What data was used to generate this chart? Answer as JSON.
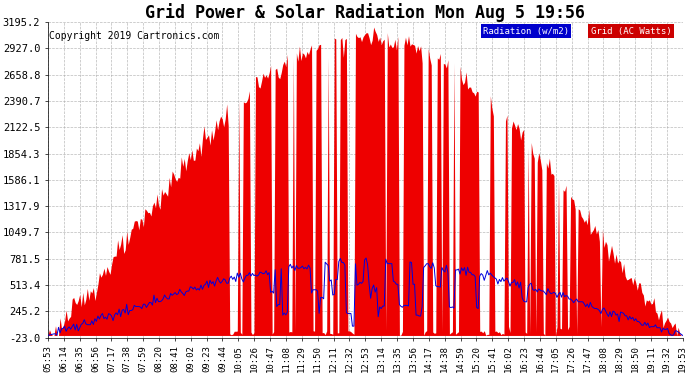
{
  "title": "Grid Power & Solar Radiation Mon Aug 5 19:56",
  "copyright": "Copyright 2019 Cartronics.com",
  "legend_radiation": "Radiation (w/m2)",
  "legend_grid": "Grid (AC Watts)",
  "yticks": [
    3195.2,
    2927.0,
    2658.8,
    2390.7,
    2122.5,
    1854.3,
    1586.1,
    1317.9,
    1049.7,
    781.5,
    513.4,
    245.2,
    -23.0
  ],
  "ymin": -23.0,
  "ymax": 3195.2,
  "background_color": "#ffffff",
  "grid_color": "#aaaaaa",
  "title_fontsize": 12,
  "copyright_fontsize": 7,
  "tick_fontsize": 6.5,
  "ytick_fontsize": 7.5,
  "x_labels": [
    "05:53",
    "06:14",
    "06:35",
    "06:56",
    "07:17",
    "07:38",
    "07:59",
    "08:20",
    "08:41",
    "09:02",
    "09:23",
    "09:44",
    "10:05",
    "10:26",
    "10:47",
    "11:08",
    "11:29",
    "11:50",
    "12:11",
    "12:32",
    "12:53",
    "13:14",
    "13:35",
    "13:56",
    "14:17",
    "14:38",
    "14:59",
    "15:20",
    "15:41",
    "16:02",
    "16:23",
    "16:44",
    "17:05",
    "17:26",
    "17:47",
    "18:08",
    "18:29",
    "18:50",
    "19:11",
    "19:32",
    "19:53"
  ]
}
